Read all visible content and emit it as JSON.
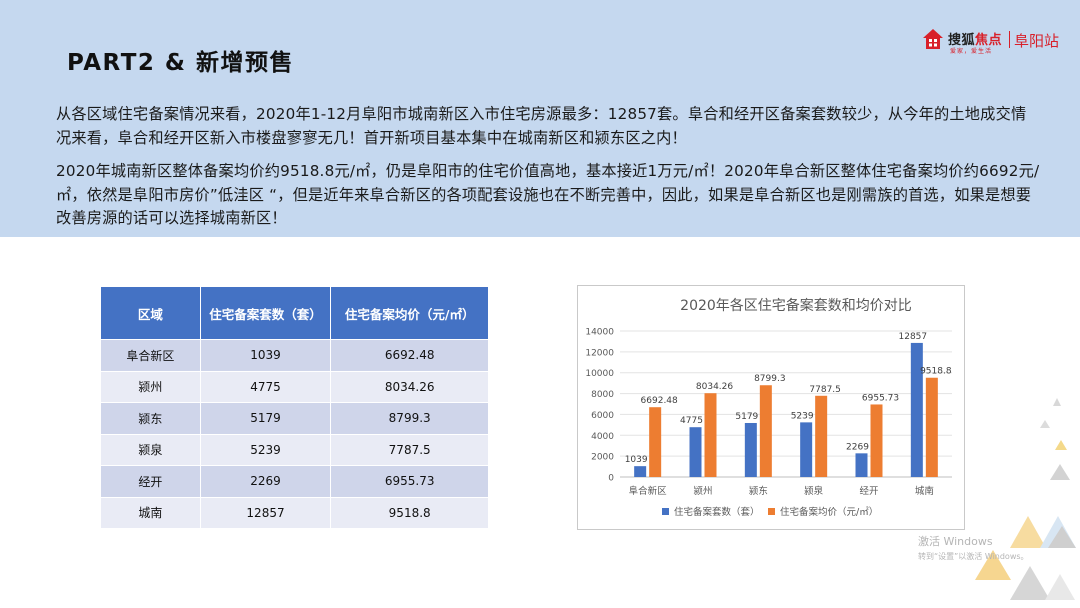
{
  "header": {
    "part_title": "PART2 & 新增预售",
    "logo": {
      "name_part1": "搜狐",
      "name_part2": "焦点",
      "tagline": "爱家，爱生活",
      "city": "阜阳站"
    }
  },
  "paragraphs": [
    "从各区域住宅备案情况来看，2020年1-12月阜阳市城南新区入市住宅房源最多：12857套。阜合和经开区备案套数较少，从今年的土地成交情况来看，阜合和经开区新入市楼盘寥寥无几！首开新项目基本集中在城南新区和颍东区之内！",
    "2020年城南新区整体备案均价约9518.8元/㎡，仍是阜阳市的住宅价值高地，基本接近1万元/㎡！2020年阜合新区整体住宅备案均价约6692元/㎡，依然是阜阳市房价”低洼区 “，但是近年来阜合新区的各项配套设施也在不断完善中，因此，如果是阜合新区也是刚需族的首选，如果是想要改善房源的话可以选择城南新区！"
  ],
  "table": {
    "headers": [
      "区域",
      "住宅备案套数（套）",
      "住宅备案均价（元/㎡）"
    ],
    "rows": [
      [
        "阜合新区",
        "1039",
        "6692.48"
      ],
      [
        "颍州",
        "4775",
        "8034.26"
      ],
      [
        "颍东",
        "5179",
        "8799.3"
      ],
      [
        "颍泉",
        "5239",
        "7787.5"
      ],
      [
        "经开",
        "2269",
        "6955.73"
      ],
      [
        "城南",
        "12857",
        "9518.8"
      ]
    ]
  },
  "chart_data": {
    "type": "bar",
    "title": "2020年各区住宅备案套数和均价对比",
    "categories": [
      "阜合新区",
      "颍州",
      "颍东",
      "颍泉",
      "经开",
      "城南"
    ],
    "series": [
      {
        "name": "住宅备案套数（套）",
        "color": "#4472c4",
        "values": [
          1039,
          4775,
          5179,
          5239,
          2269,
          12857
        ]
      },
      {
        "name": "住宅备案均价（元/㎡）",
        "color": "#ed7d31",
        "values": [
          6692.48,
          8034.26,
          8799.3,
          7787.5,
          6955.73,
          9518.8
        ]
      }
    ],
    "data_labels": [
      [
        "1039",
        "4775",
        "5179",
        "5239",
        "2269",
        "12857"
      ],
      [
        "6692.48",
        "8034.26",
        "8799.3",
        "7787.5",
        "6955.73",
        "9518.8"
      ]
    ],
    "ylim": [
      0,
      14000
    ],
    "yticks": [
      0,
      2000,
      4000,
      6000,
      8000,
      10000,
      12000,
      14000
    ],
    "grid": true,
    "legend": "bottom",
    "xlabel": "",
    "ylabel": ""
  },
  "watermark": {
    "line1": "激活 Windows",
    "line2": "转到“设置”以激活 Windows。"
  },
  "colors": {
    "banner": "#c5d8ef",
    "table_header": "#4472c4",
    "accent_red": "#d8202a"
  }
}
